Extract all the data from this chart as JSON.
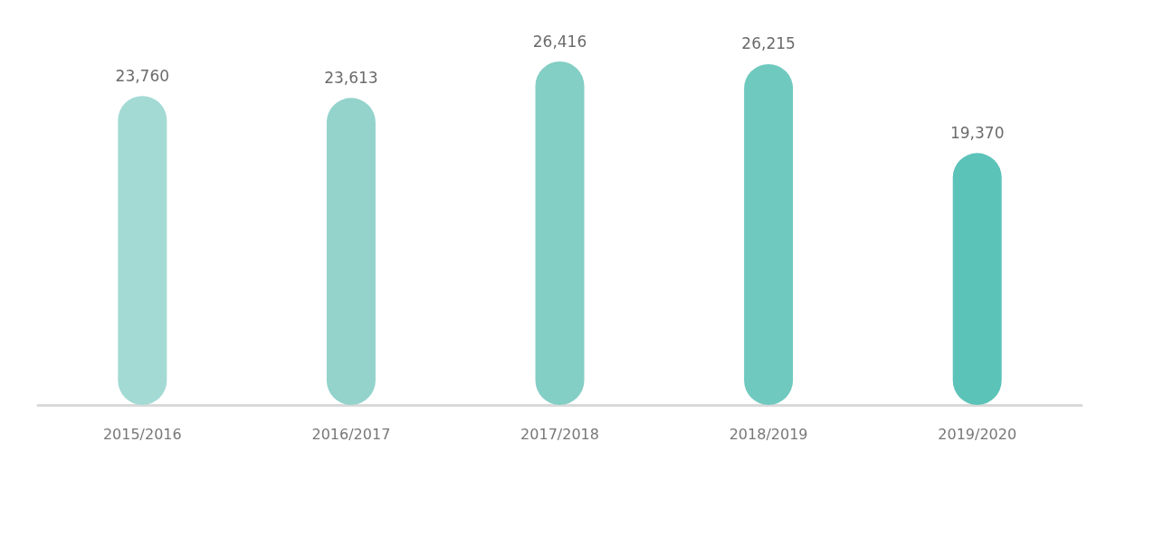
{
  "chart_data": {
    "type": "bar",
    "categories": [
      "2015/2016",
      "2016/2017",
      "2017/2018",
      "2018/2019",
      "2019/2020"
    ],
    "values": [
      23760,
      23613,
      26416,
      26215,
      19370
    ],
    "colors": [
      "#a3dad4",
      "#93d3cc",
      "#83cec5",
      "#6fc9bf",
      "#5cc3b9"
    ],
    "value_labels": [
      "23,760",
      "23,613",
      "26,416",
      "26,215",
      "19,370"
    ]
  }
}
